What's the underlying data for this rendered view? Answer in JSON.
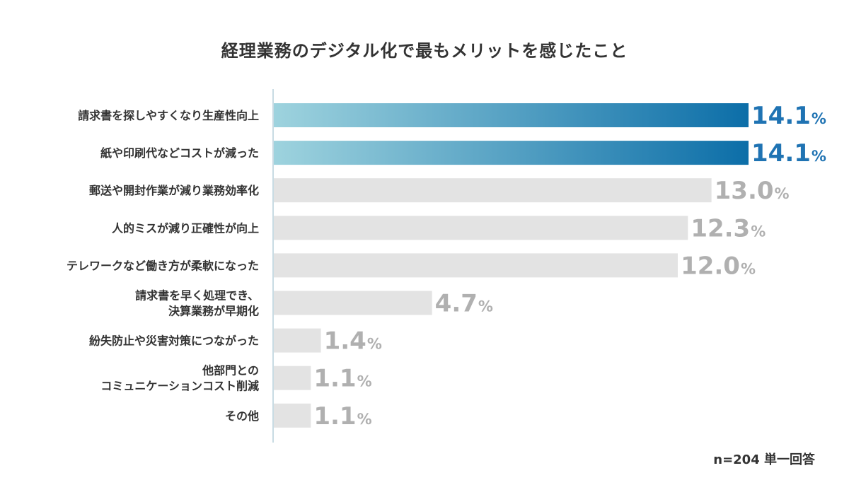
{
  "chart_data": {
    "type": "bar",
    "orientation": "horizontal",
    "title": "経理業務のデジタル化で最もメリットを感じたこと",
    "note": "n=204 単一回答",
    "unit": "%",
    "categories": [
      [
        "請求書を探しやすくなり生産性向上"
      ],
      [
        "紙や印刷代などコストが減った"
      ],
      [
        "郵送や開封作業が減り業務効率化"
      ],
      [
        "人的ミスが減り正確性が向上"
      ],
      [
        "テレワークなど働き方が柔軟になった"
      ],
      [
        "請求書を早く処理でき、",
        "決算業務が早期化"
      ],
      [
        "紛失防止や災害対策につながった"
      ],
      [
        "他部門との",
        "コミュニケーションコスト削減"
      ],
      [
        "その他"
      ]
    ],
    "values": [
      14.1,
      14.1,
      13.0,
      12.3,
      12.0,
      4.7,
      1.4,
      1.1,
      1.1
    ],
    "value_labels": [
      "14.1",
      "14.1",
      "13.0",
      "12.3",
      "12.0",
      "4.7",
      "1.4",
      "1.1",
      "1.1"
    ],
    "highlight": [
      true,
      true,
      false,
      false,
      false,
      false,
      false,
      false,
      false
    ],
    "xlim": [
      0,
      14.1
    ],
    "grid": false,
    "legend": "none",
    "colors": {
      "highlight_start": "#9ed3de",
      "highlight_end": "#0c6ea8",
      "highlight_text": "#1f73b3",
      "normal_bar": "#e3e3e3",
      "normal_text": "#b0b0b0",
      "axis_line": "#c8dbe3"
    }
  }
}
